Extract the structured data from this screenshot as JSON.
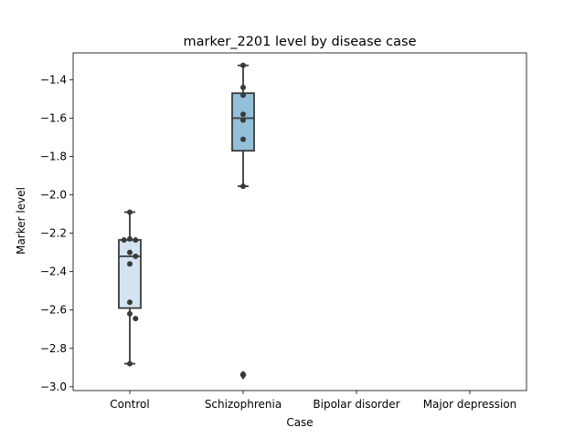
{
  "chart_data": {
    "type": "box",
    "title": "marker_2201 level by disease case",
    "xlabel": "Case",
    "ylabel": "Marker level",
    "categories": [
      "Control",
      "Schizophrenia",
      "Bipolar disorder",
      "Major depression"
    ],
    "ylim": [
      -3.02,
      -1.26
    ],
    "yticks": [
      -3.0,
      -2.8,
      -2.6,
      -2.4,
      -2.2,
      -2.0,
      -1.8,
      -1.6,
      -1.4
    ],
    "ytick_labels": [
      "−3.0",
      "−2.8",
      "−2.6",
      "−2.4",
      "−2.2",
      "−2.0",
      "−1.8",
      "−1.6",
      "−1.4"
    ],
    "grid": false,
    "boxes": [
      {
        "category": "Control",
        "whisker_low": -2.88,
        "q1": -2.59,
        "median": -2.32,
        "q3": -2.235,
        "whisker_high": -2.09,
        "outliers": [],
        "color": "#d4e3f2",
        "points": [
          -2.09,
          -2.23,
          -2.235,
          -2.235,
          -2.3,
          -2.32,
          -2.36,
          -2.56,
          -2.62,
          -2.645,
          -2.88
        ]
      },
      {
        "category": "Schizophrenia",
        "whisker_low": -1.955,
        "q1": -1.77,
        "median": -1.6,
        "q3": -1.47,
        "whisker_high": -1.325,
        "outliers": [
          -2.94
        ],
        "color": "#94bfd9",
        "points": [
          -1.325,
          -1.44,
          -1.48,
          -1.58,
          -1.61,
          -1.71,
          -1.955,
          -2.935
        ]
      },
      {
        "category": "Bipolar disorder",
        "points": []
      },
      {
        "category": "Major depression",
        "points": []
      }
    ]
  }
}
